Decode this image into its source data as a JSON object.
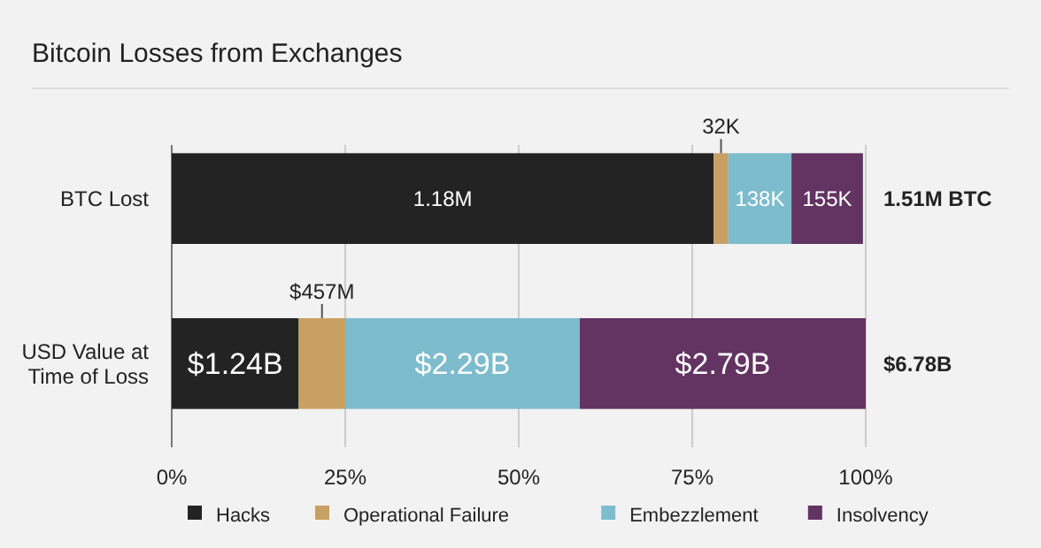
{
  "chart_data": {
    "type": "bar",
    "title": "Bitcoin Losses from Exchanges",
    "orientation": "horizontal",
    "stacked": true,
    "categories": [
      "BTC Lost",
      "USD Value at Time of Loss"
    ],
    "series": [
      {
        "name": "Hacks",
        "color": "#232323",
        "values": [
          78.1,
          18.3
        ]
      },
      {
        "name": "Operational Failure",
        "color": "#c9a064",
        "values": [
          2.1,
          6.7
        ]
      },
      {
        "name": "Embezzlement",
        "color": "#7dbccd",
        "values": [
          9.1,
          33.8
        ]
      },
      {
        "name": "Insolvency",
        "color": "#633362",
        "values": [
          10.3,
          41.2
        ]
      }
    ],
    "annotations": [
      "1.18M",
      "32K",
      "138K",
      "155K",
      "1.51M BTC",
      "$1.24B",
      "$457M",
      "$2.29B",
      "$2.79B",
      "$6.78B"
    ],
    "xlim": [
      0,
      100
    ],
    "xticks": [
      {
        "value": 0,
        "label": "0%"
      },
      {
        "value": 25,
        "label": "25%"
      },
      {
        "value": 50,
        "label": "50%"
      },
      {
        "value": 75,
        "label": "75%"
      },
      {
        "value": 100,
        "label": "100%"
      }
    ],
    "grid": "x",
    "legend": "bottom"
  }
}
